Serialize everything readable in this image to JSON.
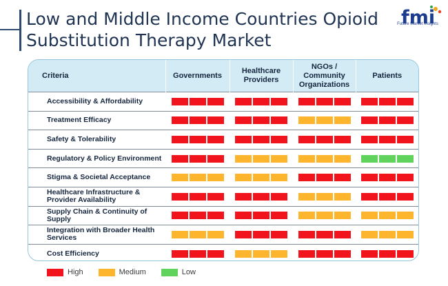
{
  "header": {
    "title": "Low and Middle Income Countries Opioid Substitution Therapy Market",
    "logo_text": "fmi",
    "logo_subtext": "Future Market Insights"
  },
  "colors": {
    "High": "#f2141c",
    "Medium": "#fcb52d",
    "Low": "#5fd35b"
  },
  "chart_data": {
    "type": "table",
    "columns": [
      "Criteria",
      "Governments",
      "Healthcare Providers",
      "NGOs / Community Organizations",
      "Patients"
    ],
    "rows": [
      {
        "criterion": "Accessibility & Affordability",
        "ratings": [
          "High",
          "High",
          "High",
          "High"
        ]
      },
      {
        "criterion": "Treatment Efficacy",
        "ratings": [
          "High",
          "High",
          "Medium",
          "High"
        ]
      },
      {
        "criterion": "Safety & Tolerability",
        "ratings": [
          "High",
          "High",
          "High",
          "High"
        ]
      },
      {
        "criterion": "Regulatory & Policy Environment",
        "ratings": [
          "High",
          "Medium",
          "Medium",
          "Low"
        ]
      },
      {
        "criterion": "Stigma & Societal Acceptance",
        "ratings": [
          "Medium",
          "Medium",
          "High",
          "High"
        ]
      },
      {
        "criterion": "Healthcare Infrastructure & Provider Availability",
        "ratings": [
          "High",
          "High",
          "Medium",
          "High"
        ]
      },
      {
        "criterion": "Supply Chain & Continuity of Supply",
        "ratings": [
          "High",
          "High",
          "Medium",
          "Medium"
        ]
      },
      {
        "criterion": "Integration with Broader Health Services",
        "ratings": [
          "Medium",
          "High",
          "High",
          "Medium"
        ]
      },
      {
        "criterion": "Cost Efficiency",
        "ratings": [
          "High",
          "Medium",
          "High",
          "High"
        ]
      }
    ],
    "legend": [
      "High",
      "Medium",
      "Low"
    ],
    "legend_position": "bottom-left"
  }
}
